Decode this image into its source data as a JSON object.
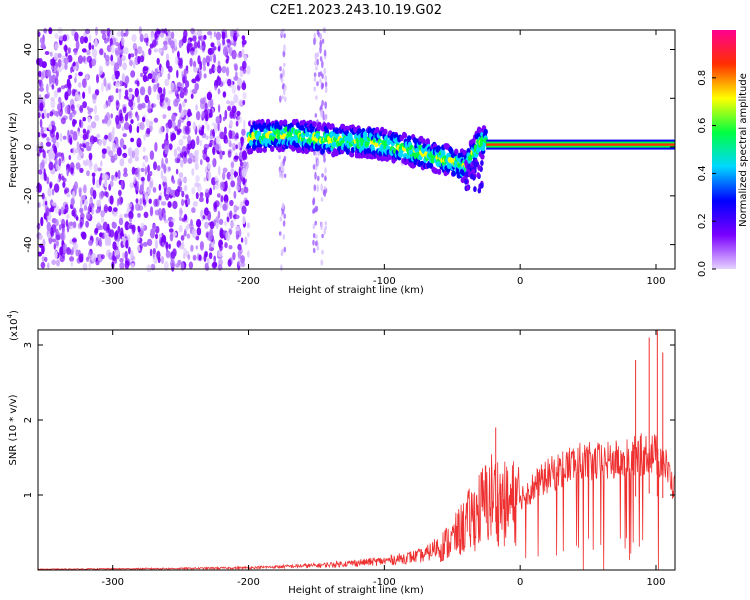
{
  "title": "C2E1.2023.243.10.19.G02",
  "chart_data": [
    {
      "type": "heatmap",
      "xlabel": "Height of straight line (km)",
      "ylabel": "Frequency (Hz)",
      "xlim": [
        -355,
        114
      ],
      "ylim": [
        -50,
        48
      ],
      "xticks": [
        -300,
        -200,
        -100,
        0,
        100
      ],
      "yticks": [
        -40,
        -20,
        0,
        20,
        40
      ],
      "colorbar": {
        "label": "Normalized spectral amplitude",
        "range": [
          0.0,
          1.0
        ],
        "ticks": [
          "0.0",
          "0.2",
          "0.4",
          "0.6",
          "0.8"
        ],
        "colors": [
          "#e6d2ff",
          "#7a00ff",
          "#0000ff",
          "#00d8ff",
          "#00ff40",
          "#ffff00",
          "#ff3000",
          "#ff0090"
        ]
      },
      "regions": [
        {
          "x": [
            -355,
            -200
          ],
          "freq": [
            -50,
            48
          ],
          "amplitude": 0.1,
          "description": "broadband noise"
        },
        {
          "x": [
            -200,
            -25
          ],
          "freq": [
            -14,
            10
          ],
          "amplitude": 0.4,
          "description": "wandering signal band"
        },
        {
          "x": [
            -25,
            114
          ],
          "freq": [
            0,
            3
          ],
          "amplitude": 0.9,
          "description": "steady tone near 1 Hz"
        }
      ],
      "signal_center_freq": [
        {
          "x": -200,
          "y": 4
        },
        {
          "x": -170,
          "y": 5
        },
        {
          "x": -140,
          "y": 3
        },
        {
          "x": -110,
          "y": 2
        },
        {
          "x": -90,
          "y": 0
        },
        {
          "x": -70,
          "y": -3
        },
        {
          "x": -50,
          "y": -6
        },
        {
          "x": -40,
          "y": -8
        },
        {
          "x": -30,
          "y": 2
        },
        {
          "x": 0,
          "y": 1
        },
        {
          "x": 50,
          "y": 1
        },
        {
          "x": 114,
          "y": 1
        }
      ]
    },
    {
      "type": "line",
      "xlabel": "Height of straight line (km)",
      "ylabel": "SNR (10 * v/v)",
      "scale_label": "(x10",
      "scale_exp": "4",
      "scale_close": ")",
      "xlim": [
        -355,
        114
      ],
      "ylim": [
        0,
        3.2
      ],
      "xticks": [
        -300,
        -200,
        -100,
        0,
        100
      ],
      "yticks": [
        1,
        2,
        3
      ],
      "series": [
        {
          "color": "#ee3030",
          "envelope": [
            {
              "x": -355,
              "y": 0.01
            },
            {
              "x": -250,
              "y": 0.02
            },
            {
              "x": -200,
              "y": 0.03
            },
            {
              "x": -150,
              "y": 0.06
            },
            {
              "x": -100,
              "y": 0.12
            },
            {
              "x": -70,
              "y": 0.2
            },
            {
              "x": -50,
              "y": 0.45
            },
            {
              "x": -30,
              "y": 0.9
            },
            {
              "x": -20,
              "y": 1.1
            },
            {
              "x": -10,
              "y": 0.95
            },
            {
              "x": 0,
              "y": 1.05
            },
            {
              "x": 20,
              "y": 1.35
            },
            {
              "x": 40,
              "y": 1.55
            },
            {
              "x": 60,
              "y": 1.55
            },
            {
              "x": 80,
              "y": 1.6
            },
            {
              "x": 95,
              "y": 1.7
            },
            {
              "x": 105,
              "y": 1.6
            },
            {
              "x": 114,
              "y": 1.15
            }
          ],
          "peaks": [
            {
              "x": -18,
              "y": 1.9
            },
            {
              "x": 85,
              "y": 2.8
            },
            {
              "x": 95,
              "y": 3.1
            },
            {
              "x": 101,
              "y": 3.2
            },
            {
              "x": 105,
              "y": 2.9
            }
          ]
        }
      ]
    }
  ]
}
